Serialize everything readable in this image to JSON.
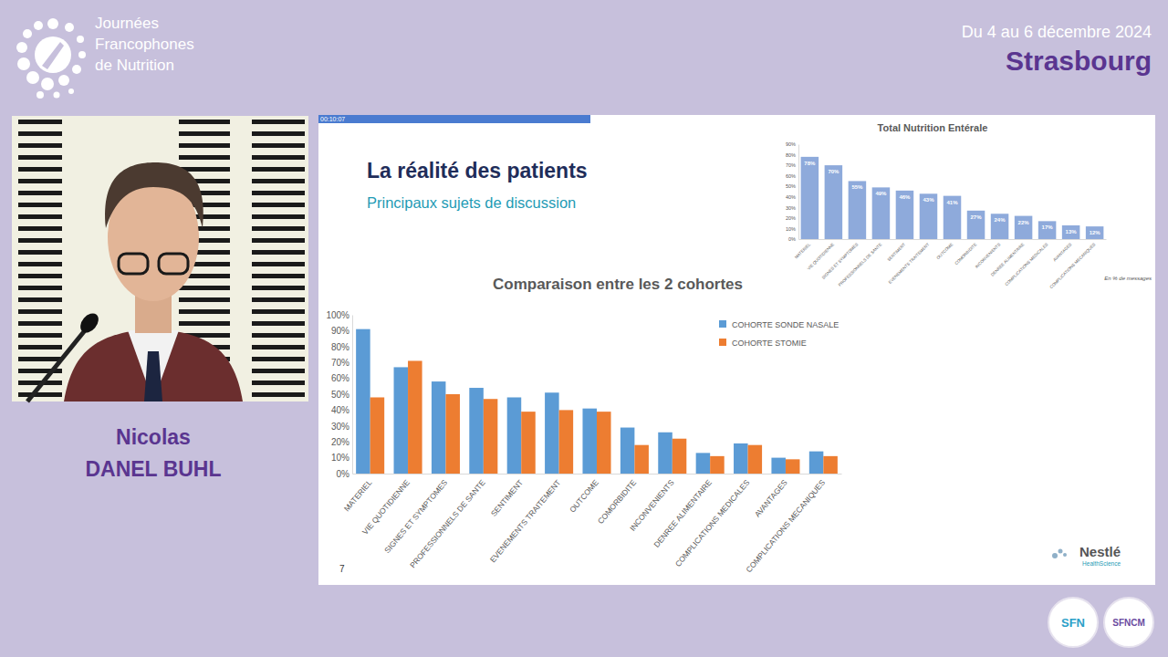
{
  "page": {
    "logo": [
      "Journées",
      "Francophones",
      "de Nutrition"
    ],
    "dates": "Du 4 au 6 décembre 2024",
    "city": "Strasbourg",
    "speaker": [
      "Nicolas",
      "DANEL BUHL"
    ],
    "timer": "00:10:07",
    "slide_title": "La réalité des patients",
    "slide_subtitle": "Principaux sujets de discussion",
    "slide_number": "7",
    "brand": [
      "Nestlé",
      "HealthScience"
    ],
    "badges": [
      "SFN",
      "SFNCM"
    ]
  },
  "chart_data": [
    {
      "type": "bar",
      "title": "Total Nutrition Entérale",
      "annotations": [
        "En % de messages"
      ],
      "categories": [
        "MATERIEL",
        "VIE QUOTIDIENNE",
        "SIGNES ET SYMPTOMES",
        "PROFESSIONNELS DE SANTE",
        "SENTIMENT",
        "EVENEMENTS TRAITEMENT",
        "OUTCOME",
        "COMORBIDITE",
        "INCONVENIENTS",
        "DENREE ALIMENTAIRE",
        "COMPLICATIONS MEDICALES",
        "AVANTAGES",
        "COMPLICATIONS MECANIQUES"
      ],
      "values": [
        78,
        70,
        55,
        49,
        46,
        43,
        41,
        27,
        24,
        22,
        17,
        13,
        12
      ],
      "value_labels": [
        "78%",
        "70%",
        "55%",
        "49%",
        "46%",
        "43%",
        "41%",
        "27%",
        "24%",
        "22%",
        "17%",
        "13%",
        "12%"
      ],
      "color": "#8eaadb",
      "data_labels": true,
      "grid": false,
      "ylim": [
        0,
        90
      ],
      "yticks": [
        {
          "value": 0,
          "label": "0%"
        },
        {
          "value": 10,
          "label": "10%"
        },
        {
          "value": 20,
          "label": "20%"
        },
        {
          "value": 30,
          "label": "30%"
        },
        {
          "value": 40,
          "label": "40%"
        },
        {
          "value": 50,
          "label": "50%"
        },
        {
          "value": 60,
          "label": "60%"
        },
        {
          "value": 70,
          "label": "70%"
        },
        {
          "value": 80,
          "label": "80%"
        },
        {
          "value": 90,
          "label": "90%"
        }
      ]
    },
    {
      "type": "bar",
      "title": "Comparaison entre les 2 cohortes",
      "categories": [
        "MATERIEL",
        "VIE QUOTIDIENNE",
        "SIGNES ET SYMPTOMES",
        "PROFESSIONNELS DE SANTE",
        "SENTIMENT",
        "EVENEMENTS TRAITEMENT",
        "OUTCOME",
        "COMORBIDITE",
        "INCONVENIENTS",
        "DENREE ALIMENTAIRE",
        "COMPLICATIONS MEDICALES",
        "AVANTAGES",
        "COMPLICATIONS MECANIQUES"
      ],
      "series": [
        {
          "name": "COHORTE SONDE NASALE",
          "color": "#5b9bd5",
          "values": [
            91,
            67,
            58,
            54,
            48,
            51,
            41,
            29,
            26,
            13,
            19,
            10,
            14
          ]
        },
        {
          "name": "COHORTE STOMIE",
          "color": "#ed7d31",
          "values": [
            48,
            71,
            50,
            47,
            39,
            40,
            39,
            18,
            22,
            11,
            18,
            9,
            11
          ]
        }
      ],
      "legend": "top-right",
      "grid": false,
      "ylim": [
        0,
        100
      ],
      "yticks": [
        {
          "value": 0,
          "label": "0%"
        },
        {
          "value": 10,
          "label": "10%"
        },
        {
          "value": 20,
          "label": "20%"
        },
        {
          "value": 30,
          "label": "30%"
        },
        {
          "value": 40,
          "label": "40%"
        },
        {
          "value": 50,
          "label": "50%"
        },
        {
          "value": 60,
          "label": "60%"
        },
        {
          "value": 70,
          "label": "70%"
        },
        {
          "value": 80,
          "label": "80%"
        },
        {
          "value": 90,
          "label": "90%"
        },
        {
          "value": 100,
          "label": "100%"
        }
      ]
    }
  ]
}
